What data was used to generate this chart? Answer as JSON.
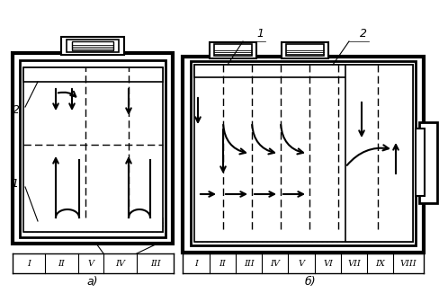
{
  "bg_color": "#ffffff",
  "line_color": "#000000",
  "fig_width": 4.89,
  "fig_height": 3.26,
  "dpi": 100,
  "label_a": "а)",
  "label_b": "б)",
  "label_1": "1",
  "label_2": "2",
  "roman_a": [
    "I",
    "II",
    "V",
    "IV",
    "III"
  ],
  "roman_b": [
    "I",
    "II",
    "III",
    "IV",
    "V",
    "VI",
    "VII",
    "IX",
    "VIII"
  ]
}
